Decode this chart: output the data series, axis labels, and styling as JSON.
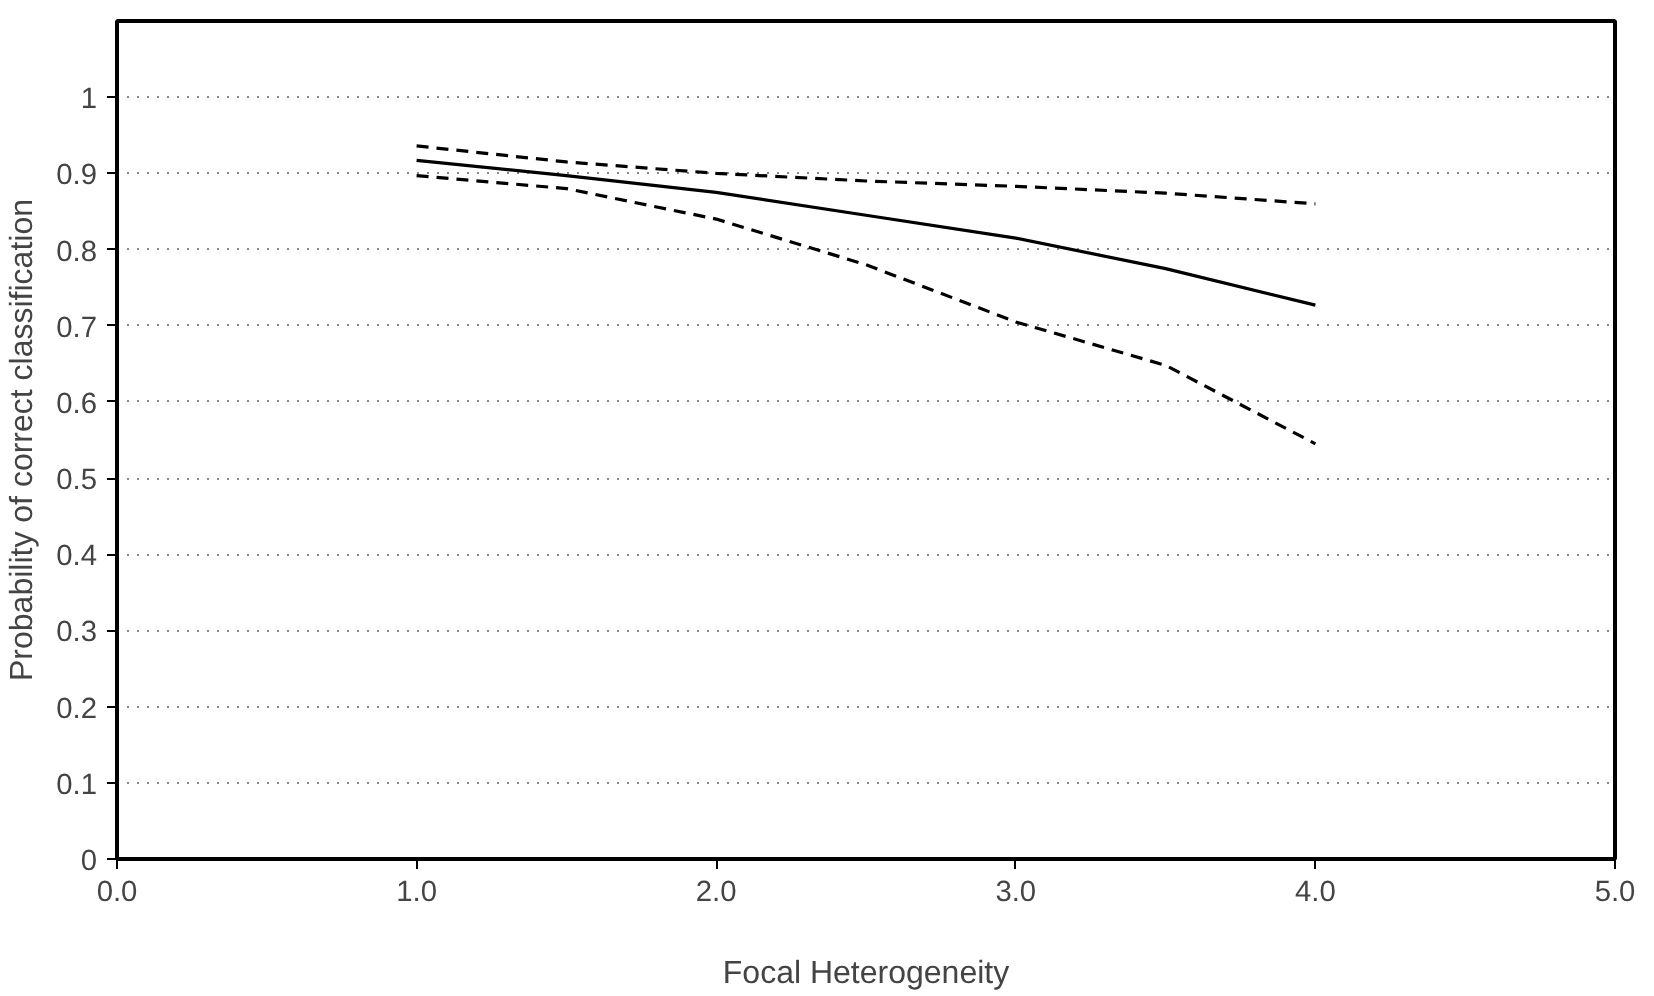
{
  "chart_data": {
    "type": "line",
    "xlabel": "Focal Heterogeneity",
    "ylabel": "Probability of correct classification",
    "xlim": [
      0,
      5
    ],
    "xticks": [
      {
        "value": 0,
        "label": "0.0"
      },
      {
        "value": 1,
        "label": "1.0"
      },
      {
        "value": 2,
        "label": "2.0"
      },
      {
        "value": 3,
        "label": "3.0"
      },
      {
        "value": 4,
        "label": "4.0"
      },
      {
        "value": 5,
        "label": "5.0"
      }
    ],
    "ylim": [
      0,
      1.1
    ],
    "yticks": [
      0,
      0.1,
      0.2,
      0.3,
      0.4,
      0.5,
      0.6,
      0.7,
      0.8,
      0.9,
      1
    ],
    "grid": "y",
    "marker": "none",
    "x": [
      1,
      1.5,
      2,
      2.5,
      3,
      3.5,
      4
    ],
    "series": [
      {
        "color": "#000000",
        "line_style": "solid",
        "values": [
          0.917,
          0.897,
          0.875,
          0.845,
          0.815,
          0.775,
          0.727
        ]
      },
      {
        "color": "#000000",
        "line_style": "dashed",
        "values": [
          0.936,
          0.915,
          0.9,
          0.89,
          0.883,
          0.874,
          0.86
        ]
      },
      {
        "color": "#000000",
        "line_style": "dashed",
        "values": [
          0.897,
          0.88,
          0.84,
          0.78,
          0.705,
          0.648,
          0.545
        ]
      }
    ]
  }
}
